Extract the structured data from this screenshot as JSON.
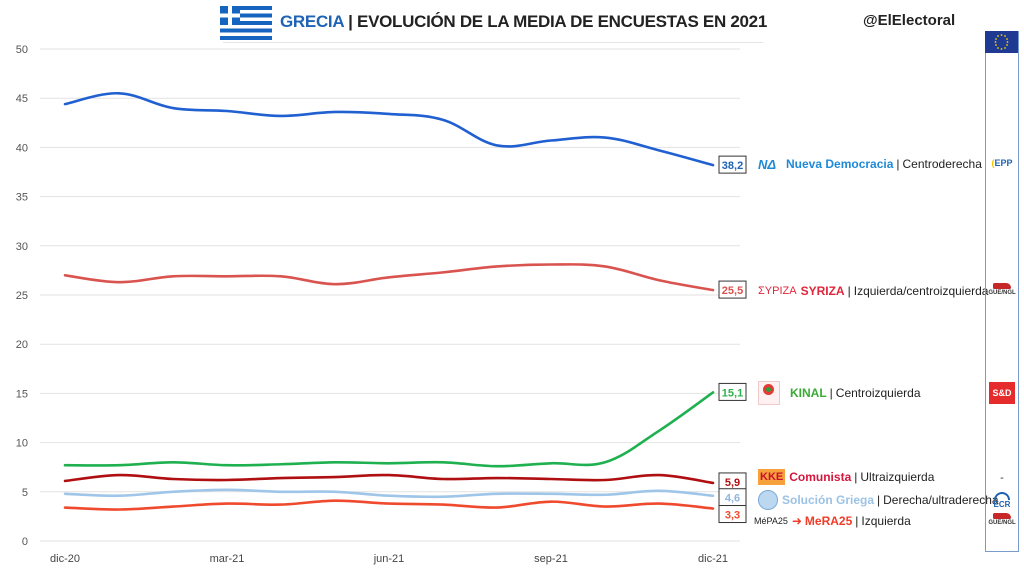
{
  "header": {
    "country": "GRECIA",
    "separator": "|",
    "title": "EVOLUCIÓN DE LA MEDIA DE ENCUESTAS EN 2021",
    "handle": "@ElElectoral",
    "flag_icon": "greece-flag-icon"
  },
  "legend": [
    {
      "party": "Nueva Democracia",
      "ideology": "Centroderecha",
      "color": "#1f8ad6",
      "logo": "nd-logo",
      "eu_group": "EPP"
    },
    {
      "party": "SYRIZA",
      "ideology": "Izquierda/centroizquierda",
      "color": "#e0263a",
      "logo": "syriza-logo",
      "logo_text": "ΣΥΡΙΖΑ",
      "eu_group": "GUE/NGL"
    },
    {
      "party": "KINAL",
      "ideology": "Centroizquierda",
      "color": "#3aaa35",
      "logo": "kinal-logo",
      "eu_group": "S&D"
    },
    {
      "party": "Comunista",
      "ideology": "Ultraizquierda",
      "color": "#d4163c",
      "logo": "kke-logo",
      "logo_text": "KKE",
      "eu_group": "-"
    },
    {
      "party": "Solución Griega",
      "ideology": "Derecha/ultraderecha",
      "color": "#9cc3e6",
      "logo": "solucion-griega-logo",
      "eu_group": "ECR"
    },
    {
      "party": "MeRA25",
      "ideology": "Izquierda",
      "color": "#f03c28",
      "logo": "mera25-logo",
      "logo_text": "MéPA25",
      "eu_group": "GUE/NGL"
    }
  ],
  "eu_groups": {
    "header_icon": "eu-flag-icon",
    "items": [
      "EPP",
      "GUE/NGL",
      "S&D",
      "-",
      "ECR",
      "GUE/NGL"
    ]
  },
  "chart_data": {
    "type": "line",
    "title": "GRECIA | EVOLUCIÓN DE LA MEDIA DE ENCUESTAS EN 2021",
    "xlabel": "",
    "ylabel": "",
    "x": [
      "dic-20",
      "ene-21",
      "feb-21",
      "mar-21",
      "abr-21",
      "may-21",
      "jun-21",
      "jul-21",
      "ago-21",
      "sep-21",
      "oct-21",
      "nov-21",
      "dic-21"
    ],
    "x_tick_labels": [
      "dic-20",
      "mar-21",
      "jun-21",
      "sep-21",
      "dic-21"
    ],
    "ylim": [
      0,
      50
    ],
    "y_ticks": [
      0,
      5,
      10,
      15,
      20,
      25,
      30,
      35,
      40,
      45,
      50
    ],
    "grid": true,
    "legend_position": "right",
    "series": [
      {
        "name": "Nueva Democracia",
        "color": "#2060d0",
        "end_label": "38,2",
        "label_color": "#1f63b5",
        "values": [
          44.4,
          45.5,
          44.0,
          43.7,
          43.2,
          43.6,
          43.4,
          42.8,
          40.2,
          40.7,
          41.0,
          39.7,
          38.2
        ]
      },
      {
        "name": "SYRIZA",
        "color": "#d9534f",
        "end_label": "25,5",
        "label_color": "#d9534f",
        "values": [
          27.0,
          26.3,
          26.9,
          26.9,
          26.9,
          26.1,
          26.8,
          27.3,
          27.9,
          28.1,
          27.9,
          26.5,
          25.5
        ]
      },
      {
        "name": "KINAL",
        "color": "#1fb050",
        "end_label": "15,1",
        "label_color": "#2fb04f",
        "values": [
          7.7,
          7.7,
          8.0,
          7.7,
          7.8,
          8.0,
          7.9,
          8.0,
          7.6,
          7.9,
          8.0,
          11.2,
          15.1
        ]
      },
      {
        "name": "Comunista (KKE)",
        "color": "#b00f12",
        "end_label": "5,9",
        "label_color": "#b00f12",
        "values": [
          6.1,
          6.7,
          6.3,
          6.2,
          6.4,
          6.5,
          6.7,
          6.3,
          6.4,
          6.3,
          6.2,
          6.7,
          5.9
        ]
      },
      {
        "name": "Solución Griega",
        "color": "#9fc5e8",
        "end_label": "4,6",
        "label_color": "#8fb6e0",
        "values": [
          4.8,
          4.6,
          5.0,
          5.2,
          5.0,
          5.0,
          4.6,
          4.5,
          4.8,
          4.8,
          4.7,
          5.1,
          4.6
        ]
      },
      {
        "name": "MeRA25",
        "color": "#f04a2e",
        "end_label": "3,3",
        "label_color": "#f04a2e",
        "values": [
          3.4,
          3.2,
          3.5,
          3.8,
          3.7,
          4.1,
          3.8,
          3.7,
          3.4,
          4.0,
          3.5,
          3.8,
          3.3
        ]
      }
    ]
  }
}
